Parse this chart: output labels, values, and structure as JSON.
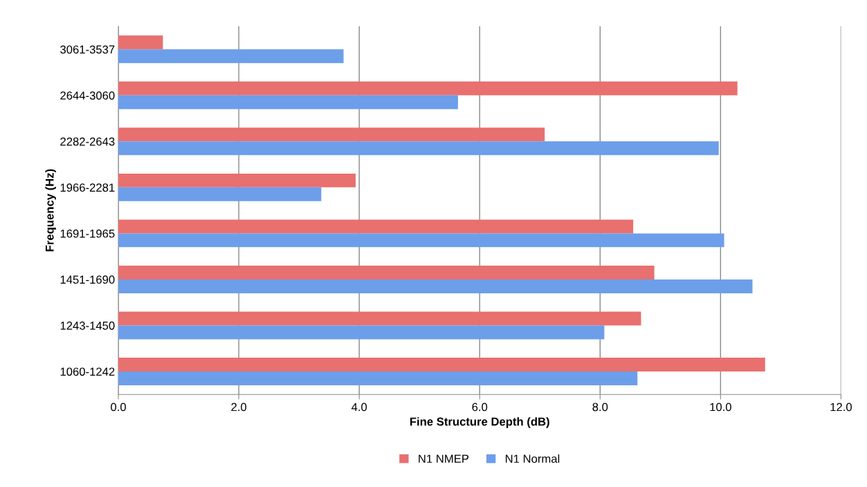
{
  "chart_data": {
    "type": "bar",
    "orientation": "horizontal",
    "xlabel": "Fine Structure Depth (dB)",
    "ylabel": "Frequency (Hz)",
    "categories": [
      "3061-3537",
      "2644-3060",
      "2282-2643",
      "1966-2281",
      "1691-1965",
      "1451-1690",
      "1243-1450",
      "1060-1242"
    ],
    "series": [
      {
        "name": "N1 NMEP",
        "color": "#e8706f",
        "values": [
          0.74,
          10.28,
          7.08,
          3.94,
          8.55,
          8.9,
          8.68,
          10.74
        ]
      },
      {
        "name": "N1 Normal",
        "color": "#6d9eea",
        "values": [
          3.74,
          5.64,
          9.97,
          3.37,
          10.06,
          10.53,
          8.07,
          8.62
        ]
      }
    ],
    "xlim": [
      0,
      12
    ],
    "xticks": [
      {
        "value": 0,
        "label": "0.0"
      },
      {
        "value": 2,
        "label": "2.0"
      },
      {
        "value": 4,
        "label": "4.0"
      },
      {
        "value": 6,
        "label": "6.0"
      },
      {
        "value": 8,
        "label": "8.0"
      },
      {
        "value": 10,
        "label": "10.0"
      },
      {
        "value": 12,
        "label": "12.0"
      }
    ],
    "grid": "x",
    "legend": "bottom"
  }
}
